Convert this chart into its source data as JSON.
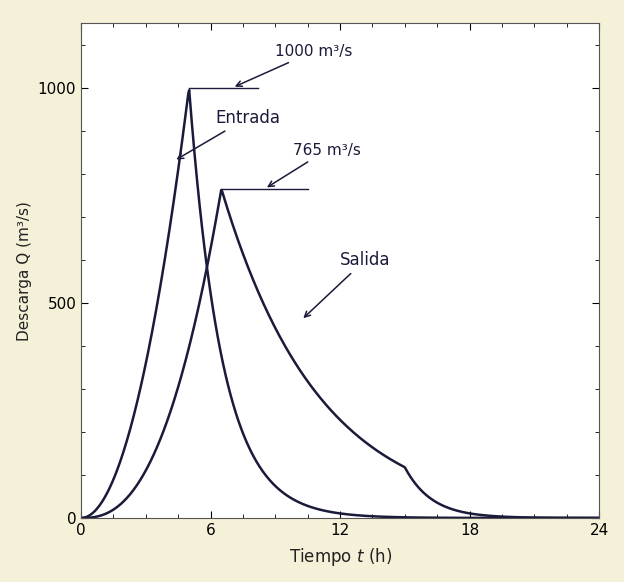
{
  "background_color": "#f5f0d8",
  "plot_background": "#ffffff",
  "line_color": "#1a1a3a",
  "line_width": 1.8,
  "xlim": [
    0,
    24
  ],
  "ylim": [
    0,
    1150
  ],
  "xticks": [
    0,
    6,
    12,
    18,
    24
  ],
  "yticks": [
    0,
    500,
    1000
  ],
  "xlabel": "Tiempo $t$ (h)",
  "ylabel": "Descarga Q (m³/s)",
  "ylabel_fontsize": 11,
  "xlabel_fontsize": 12,
  "tick_fontsize": 11,
  "annotation_fontsize": 11,
  "inlet_peak_time": 5.0,
  "inlet_peak_q": 1000.0,
  "outlet_peak_time": 6.5,
  "outlet_peak_q": 765.0,
  "annotation_1000": "1000 m³/s",
  "annotation_entrada": "Entrada",
  "annotation_765": "765 m³/s",
  "annotation_salida": "Salida",
  "hline_1000_x1": 5.0,
  "hline_1000_x2": 8.2,
  "hline_765_x1": 6.5,
  "hline_765_x2": 10.5
}
